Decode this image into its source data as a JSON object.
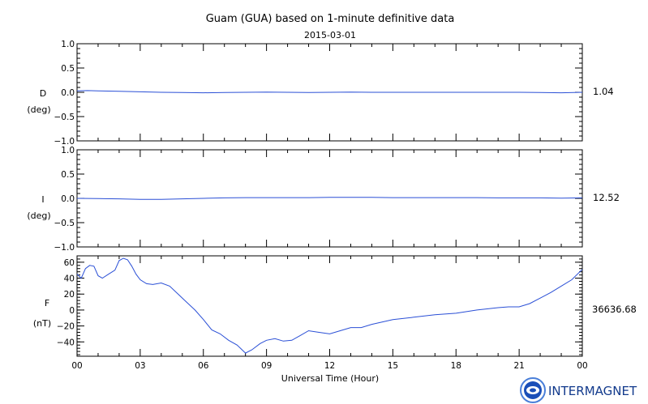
{
  "chart_data": {
    "type": "line",
    "title": "Guam (GUA) based on 1-minute definitive data",
    "subtitle": "2015-03-01",
    "xlabel": "Universal Time (Hour)",
    "x_ticks": [
      "00",
      "03",
      "06",
      "09",
      "12",
      "15",
      "18",
      "21",
      "00"
    ],
    "xlim": [
      0,
      24
    ],
    "grid": false,
    "line_color": "#2a4fd6",
    "panels": [
      {
        "name": "D",
        "unit": "(deg)",
        "baseline": "1.04",
        "ylim": [
          -1.0,
          1.0
        ],
        "y_ticks": [
          "1.0",
          "0.5",
          "0.0",
          "−0.5",
          "−1.0"
        ],
        "x": [
          0,
          0.5,
          1,
          2,
          3,
          4,
          5,
          6,
          7,
          8,
          9,
          10,
          11,
          12,
          13,
          14,
          15,
          16,
          17,
          18,
          19,
          20,
          21,
          22,
          23,
          24
        ],
        "y": [
          0.03,
          0.035,
          0.03,
          0.02,
          0.01,
          0.0,
          -0.005,
          -0.01,
          -0.005,
          0.0,
          0.005,
          0.0,
          -0.005,
          0.0,
          0.005,
          0.0,
          0.0,
          0.0,
          0.0,
          0.0,
          0.0,
          0.0,
          0.0,
          -0.005,
          -0.01,
          0.0
        ]
      },
      {
        "name": "I",
        "unit": "(deg)",
        "baseline": "12.52",
        "ylim": [
          -1.0,
          1.0
        ],
        "y_ticks": [
          "1.0",
          "0.5",
          "0.0",
          "−0.5",
          "−1.0"
        ],
        "x": [
          0,
          1,
          2,
          3,
          4,
          5,
          6,
          7,
          8,
          9,
          10,
          11,
          12,
          13,
          14,
          15,
          16,
          17,
          18,
          19,
          20,
          21,
          22,
          23,
          24
        ],
        "y": [
          0.0,
          -0.005,
          -0.01,
          -0.02,
          -0.02,
          -0.01,
          0.0,
          0.01,
          0.015,
          0.015,
          0.015,
          0.015,
          0.02,
          0.02,
          0.02,
          0.015,
          0.015,
          0.015,
          0.015,
          0.015,
          0.01,
          0.01,
          0.01,
          0.005,
          0.01
        ]
      },
      {
        "name": "F",
        "unit": "(nT)",
        "baseline": "36636.68",
        "ylim": [
          -58,
          68
        ],
        "y_ticks": [
          "60",
          "40",
          "20",
          "0",
          "−20",
          "−40"
        ],
        "y_tick_values": [
          60,
          40,
          20,
          0,
          -20,
          -40
        ],
        "x": [
          0,
          0.2,
          0.4,
          0.6,
          0.8,
          1.0,
          1.2,
          1.5,
          1.8,
          2.0,
          2.2,
          2.4,
          2.6,
          2.8,
          3.0,
          3.3,
          3.6,
          4.0,
          4.4,
          4.8,
          5.2,
          5.6,
          6.0,
          6.4,
          6.8,
          7.2,
          7.6,
          8.0,
          8.3,
          8.7,
          9.0,
          9.4,
          9.8,
          10.2,
          10.6,
          11.0,
          11.5,
          12.0,
          12.5,
          13.0,
          13.5,
          14.0,
          15.0,
          16.0,
          17.0,
          18.0,
          19.0,
          20.0,
          20.5,
          21.0,
          21.5,
          22.0,
          22.5,
          23.0,
          23.5,
          24.0
        ],
        "y": [
          45,
          40,
          52,
          56,
          55,
          43,
          40,
          45,
          50,
          62,
          65,
          63,
          55,
          45,
          38,
          33,
          32,
          34,
          30,
          20,
          10,
          0,
          -12,
          -25,
          -30,
          -38,
          -44,
          -54,
          -50,
          -42,
          -38,
          -36,
          -39,
          -38,
          -32,
          -26,
          -28,
          -30,
          -26,
          -22,
          -22,
          -18,
          -12,
          -9,
          -6,
          -4,
          0,
          3,
          4,
          4,
          8,
          15,
          22,
          30,
          38,
          51
        ]
      }
    ]
  },
  "logo": {
    "text": "INTERMAGNET"
  }
}
